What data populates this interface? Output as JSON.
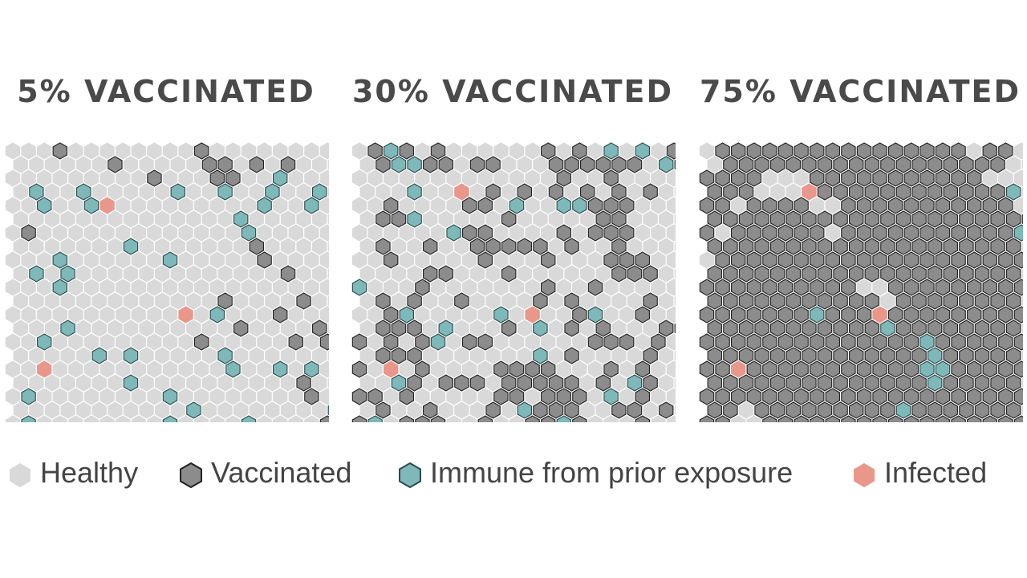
{
  "panels": [
    {
      "title": "5% VACCINATED",
      "vaccinated": [
        "0,3",
        "1,6",
        "2,9",
        "1,12",
        "0,12",
        "1,13",
        "2,13",
        "1,15",
        "1,17",
        "2,14",
        "6,1",
        "7,15",
        "8,16",
        "9,17",
        "11,18",
        "12,17",
        "11,13",
        "14,12",
        "12,13",
        "13,19",
        "14,20",
        "13,14",
        "14,18",
        "16,17",
        "17,18",
        "18,19",
        "19,21",
        "20,20"
      ],
      "immune": [
        "2,17",
        "3,19",
        "4,19",
        "3,1",
        "3,4",
        "3,10",
        "3,13",
        "3,16",
        "4,2",
        "4,5",
        "4,16",
        "5,14",
        "6,15",
        "7,7",
        "8,3",
        "8,10",
        "9,3",
        "9,1",
        "10,3",
        "12,13",
        "13,3",
        "14,2",
        "15,13",
        "15,5",
        "15,7",
        "16,14",
        "16,17",
        "17,7",
        "16,19",
        "18,10",
        "18,1",
        "19,11",
        "19,20",
        "20,1",
        "20,15",
        "20,10",
        "21,11",
        "21,6",
        "22,19",
        "22,18",
        "21,19",
        "22,8",
        "22,13",
        "22,16"
      ],
      "infected": [
        "4,6",
        "12,11",
        "16,2"
      ]
    },
    {
      "title": "30% VACCINATED",
      "vaccinated": [
        "0,1",
        "0,3",
        "0,5",
        "0,12",
        "0,14",
        "0,16",
        "0,18",
        "0,20",
        "1,1",
        "1,4",
        "1,5",
        "1,7",
        "1,8",
        "1,12",
        "1,13",
        "1,14",
        "1,15",
        "1,16",
        "1,17",
        "1,20",
        "2,13",
        "2,16",
        "3,3",
        "3,8",
        "3,10",
        "3,12",
        "3,14",
        "3,16",
        "3,18",
        "4,2",
        "4,7",
        "4,8",
        "4,10",
        "4,13",
        "4,14",
        "4,15",
        "4,16",
        "4,17",
        "5,1",
        "5,2",
        "5,9",
        "5,15",
        "5,16",
        "6,6",
        "6,7",
        "6,8",
        "6,13",
        "6,15",
        "6,16",
        "6,17",
        "7,1",
        "7,4",
        "7,7",
        "7,8",
        "7,9",
        "7,10",
        "7,11",
        "7,13",
        "7,16",
        "8,2",
        "8,8",
        "8,12",
        "8,16",
        "8,17",
        "8,18",
        "9,4",
        "9,5",
        "9,9",
        "9,16",
        "9,17",
        "9,18",
        "10,4",
        "10,12",
        "10,15",
        "11,1",
        "11,3",
        "11,6",
        "11,11",
        "11,13",
        "11,18",
        "12,2",
        "12,3",
        "12,14",
        "12,15",
        "12,18",
        "13,1",
        "13,2",
        "13,3",
        "13,9",
        "13,13",
        "13,15",
        "13,19",
        "13,20",
        "14,0",
        "14,2",
        "14,4",
        "14,5",
        "14,7",
        "14,8",
        "14,15",
        "14,16",
        "14,17",
        "14,19",
        "15,1",
        "15,2",
        "15,3",
        "15,13",
        "15,18",
        "16,0",
        "16,2",
        "16,4",
        "16,9",
        "16,10",
        "16,11",
        "16,12",
        "16,16",
        "16,18",
        "17,3",
        "17,5",
        "17,6",
        "17,7",
        "17,9",
        "17,10",
        "17,11",
        "17,12",
        "17,13",
        "17,15",
        "17,17",
        "17,18",
        "18,0",
        "18,1",
        "18,3",
        "18,9",
        "18,10",
        "18,12",
        "18,13",
        "18,14",
        "18,16",
        "18,18",
        "19,1",
        "19,4",
        "19,8",
        "19,10",
        "19,11",
        "19,12",
        "19,13",
        "19,16",
        "19,17",
        "19,19",
        "20,0",
        "20,3",
        "20,4",
        "20,5",
        "20,8",
        "20,11",
        "20,12",
        "20,14",
        "20,18"
      ],
      "immune": [
        "0,2",
        "0,16",
        "0,18",
        "1,2",
        "1,3",
        "1,19",
        "3,3",
        "4,10",
        "4,13",
        "4,14",
        "5,3",
        "6,6",
        "10,0",
        "12,3",
        "12,9",
        "12,15",
        "13,11",
        "13,5",
        "14,5",
        "15,11",
        "17,17",
        "17,2",
        "18,16",
        "19,10",
        "20,1",
        "20,13"
      ],
      "infected": [
        "3,6",
        "12,11",
        "16,2"
      ]
    },
    {
      "title": "75% VACCINATED",
      "vaccinated": [
        "0,1",
        "0,2",
        "0,3",
        "0,4",
        "0,5",
        "0,6",
        "0,7",
        "0,8",
        "0,9",
        "0,10",
        "0,11",
        "0,12",
        "0,13",
        "0,14",
        "0,15",
        "0,16",
        "0,18",
        "0,19",
        "1,1",
        "1,2",
        "1,3",
        "1,4",
        "1,5",
        "1,6",
        "1,7",
        "1,8",
        "1,9",
        "1,10",
        "1,11",
        "1,12",
        "1,13",
        "1,14",
        "1,15",
        "1,16",
        "1,17",
        "1,18",
        "2,0",
        "2,1",
        "2,2",
        "2,3",
        "2,7",
        "2,8",
        "2,9",
        "2,10",
        "2,11",
        "2,12",
        "2,13",
        "2,14",
        "2,15",
        "2,16",
        "2,17",
        "3,0",
        "3,1",
        "3,2",
        "3,7",
        "3,8",
        "3,9",
        "3,10",
        "3,11",
        "3,12",
        "3,13",
        "3,14",
        "3,15",
        "3,16",
        "3,17",
        "3,18",
        "4,0",
        "4,1",
        "4,3",
        "4,4",
        "4,5",
        "4,6",
        "4,9",
        "4,10",
        "4,11",
        "4,12",
        "4,13",
        "4,14",
        "4,15",
        "4,16",
        "4,17",
        "4,18",
        "4,19",
        "5,0",
        "5,1",
        "5,2",
        "5,3",
        "5,4",
        "5,5",
        "5,6",
        "5,7",
        "5,8",
        "5,9",
        "5,10",
        "5,11",
        "5,12",
        "5,13",
        "5,14",
        "5,15",
        "5,16",
        "5,17",
        "5,18",
        "5,19",
        "5,20",
        "6,0",
        "6,2",
        "6,3",
        "6,4",
        "6,5",
        "6,6",
        "6,7",
        "6,9",
        "6,10",
        "6,11",
        "6,12",
        "6,13",
        "6,14",
        "6,15",
        "6,16",
        "6,17",
        "6,18",
        "6,19",
        "6,20",
        "7,0",
        "7,1",
        "7,2",
        "7,3",
        "7,4",
        "7,5",
        "7,6",
        "7,7",
        "7,8",
        "7,9",
        "7,10",
        "7,11",
        "7,12",
        "7,13",
        "7,14",
        "7,15",
        "7,16",
        "7,17",
        "7,18",
        "7,19",
        "8,1",
        "8,2",
        "8,3",
        "8,4",
        "8,5",
        "8,6",
        "8,7",
        "8,8",
        "8,9",
        "8,10",
        "8,11",
        "8,12",
        "8,13",
        "8,14",
        "8,15",
        "8,16",
        "8,17",
        "8,18",
        "8,19",
        "8,20",
        "9,0",
        "9,1",
        "9,2",
        "9,3",
        "9,4",
        "9,5",
        "9,6",
        "9,7",
        "9,8",
        "9,9",
        "9,10",
        "9,11",
        "9,12",
        "9,13",
        "9,14",
        "9,15",
        "9,16",
        "9,17",
        "9,18",
        "9,19",
        "10,0",
        "10,1",
        "10,2",
        "10,3",
        "10,4",
        "10,5",
        "10,6",
        "10,7",
        "10,8",
        "10,9",
        "10,12",
        "10,13",
        "10,14",
        "10,15",
        "10,16",
        "10,17",
        "10,18",
        "10,19",
        "10,20",
        "11,0",
        "11,1",
        "11,2",
        "11,3",
        "11,4",
        "11,5",
        "11,6",
        "11,7",
        "11,8",
        "11,9",
        "11,10",
        "11,12",
        "11,13",
        "11,14",
        "11,15",
        "11,16",
        "11,17",
        "11,18",
        "11,19",
        "12,0",
        "12,1",
        "12,2",
        "12,3",
        "12,4",
        "12,5",
        "12,6",
        "12,7",
        "12,8",
        "12,9",
        "12,10",
        "12,12",
        "12,13",
        "12,14",
        "12,15",
        "12,16",
        "12,17",
        "12,18",
        "12,19",
        "12,20",
        "13,0",
        "13,1",
        "13,2",
        "13,3",
        "13,4",
        "13,5",
        "13,6",
        "13,7",
        "13,8",
        "13,9",
        "13,10",
        "13,11",
        "13,12",
        "13,13",
        "13,14",
        "13,15",
        "13,16",
        "13,17",
        "13,18",
        "13,19",
        "14,0",
        "14,1",
        "14,2",
        "14,3",
        "14,4",
        "14,5",
        "14,6",
        "14,7",
        "14,8",
        "14,9",
        "14,10",
        "14,11",
        "14,12",
        "14,13",
        "14,14",
        "14,15",
        "14,16",
        "14,17",
        "14,18",
        "14,19",
        "14,20",
        "15,0",
        "15,1",
        "15,2",
        "15,3",
        "15,4",
        "15,5",
        "15,6",
        "15,7",
        "15,8",
        "15,9",
        "15,10",
        "15,11",
        "15,12",
        "15,13",
        "15,14",
        "15,15",
        "15,16",
        "15,17",
        "15,18",
        "15,19",
        "16,0",
        "16,1",
        "16,3",
        "16,4",
        "16,5",
        "16,6",
        "16,7",
        "16,8",
        "16,9",
        "16,10",
        "16,11",
        "16,12",
        "16,13",
        "16,14",
        "16,15",
        "16,16",
        "16,17",
        "16,18",
        "16,19",
        "16,20",
        "17,0",
        "17,1",
        "17,2",
        "17,3",
        "17,4",
        "17,5",
        "17,6",
        "17,7",
        "17,8",
        "17,9",
        "17,10",
        "17,11",
        "17,12",
        "17,13",
        "17,14",
        "17,15",
        "17,16",
        "17,17",
        "17,18",
        "17,19",
        "18,0",
        "18,1",
        "18,2",
        "18,3",
        "18,4",
        "18,5",
        "18,6",
        "18,7",
        "18,8",
        "18,9",
        "18,10",
        "18,11",
        "18,12",
        "18,13",
        "18,14",
        "18,15",
        "18,16",
        "18,17",
        "18,18",
        "18,19",
        "18,20",
        "19,0",
        "19,1",
        "19,3",
        "19,4",
        "19,5",
        "19,6",
        "19,7",
        "19,8",
        "19,9",
        "19,10",
        "19,11",
        "19,12",
        "19,13",
        "19,14",
        "19,15",
        "19,16",
        "19,17",
        "19,18",
        "19,19",
        "20,0",
        "20,1",
        "20,4",
        "20,5",
        "20,6",
        "20,7",
        "20,8",
        "20,9",
        "20,10",
        "20,11",
        "20,12",
        "20,13",
        "20,14",
        "20,15",
        "20,16",
        "20,17",
        "20,18",
        "20,19",
        "20,20"
      ],
      "immune": [
        "3,19",
        "6,20",
        "12,7",
        "13,11",
        "14,14",
        "15,14",
        "16,15",
        "16,14",
        "17,14",
        "19,12"
      ],
      "infected": [
        "3,6",
        "12,11",
        "16,2"
      ]
    }
  ],
  "legend": [
    {
      "label": "Healthy",
      "color": "#d9d9d9",
      "stroke": "none"
    },
    {
      "label": "Vaccinated",
      "color": "#8c8c8c",
      "stroke": "#222222"
    },
    {
      "label": "Immune from prior exposure",
      "color": "#7fb8b9",
      "stroke": "#2c4a4a"
    },
    {
      "label": "Infected",
      "color": "#e8978a",
      "stroke": "none"
    }
  ],
  "colors": {
    "healthy": "#d9d9d9",
    "vaccinated": "#8c8c8c",
    "vaccinated_stroke": "#222222",
    "immune": "#7fb8b9",
    "immune_stroke": "#2c4a4a",
    "infected": "#e8978a",
    "title": "#4a4a4a"
  }
}
